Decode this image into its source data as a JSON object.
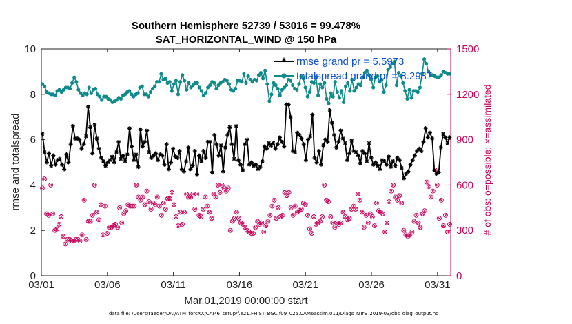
{
  "chart_data": {
    "type": "line",
    "title": "Southern Hemisphere 52739 / 53016 = 99.478%",
    "subtitle": "SAT_HORIZONTAL_WIND @ 150 hPa",
    "xlabel": "Mar.01,2019 00:00:00 start",
    "ylabel": "rmse and totalspread",
    "ylabel_right": "# of obs: o=possible; ×=assimilated",
    "footnote": "data file: /Users/raeder/DAI/ATM_forcXX/CAM6_setup/f.e21.FHIST_BGC.f09_025.CAM6assim.011/Diags_NTrS_2019-03/obs_diag_output.nc",
    "x_ticks": [
      "03/01",
      "03/06",
      "03/11",
      "03/16",
      "03/21",
      "03/26",
      "03/31"
    ],
    "y_ticks": [
      "0",
      "2",
      "4",
      "6",
      "8",
      "10"
    ],
    "y_right_ticks": [
      "0",
      "300",
      "600",
      "900",
      "1200",
      "1500"
    ],
    "xlim": [
      1,
      32
    ],
    "ylim": [
      0,
      10
    ],
    "ylim_right": [
      0,
      1500
    ],
    "grid": false,
    "legend_position": "top-right",
    "series": [
      {
        "name": "rmse grand pr = 5.5973",
        "color": "#000000",
        "marker": "asterisk",
        "values": [
          6.25,
          5.45,
          5.0,
          5.4,
          4.85,
          5.3,
          4.9,
          5.1,
          5.15,
          4.9,
          4.7,
          5.35,
          5.0,
          5.8,
          6.6,
          6.05,
          6.05,
          6.0,
          5.6,
          5.8,
          6.15,
          7.45,
          6.55,
          5.4,
          6.65,
          6.05,
          5.6,
          5.2,
          5.05,
          4.85,
          5.0,
          5.1,
          5.25,
          5.0,
          5.45,
          5.9,
          5.15,
          5.3,
          5.05,
          5.35,
          6.5,
          5.7,
          5.1,
          5.35,
          4.8,
          6.45,
          5.7,
          5.9,
          6.4,
          5.45,
          5.2,
          5.3,
          5.4,
          5.1,
          5.35,
          5.3,
          4.9,
          5.8,
          4.7,
          5.0,
          5.6,
          5.25,
          5.2,
          5.5,
          4.7,
          4.6,
          5.05,
          5.65,
          4.7,
          4.85,
          5.5,
          4.45,
          5.3,
          5.05,
          5.5,
          5.2,
          5.9,
          5.9,
          4.55,
          6.2,
          5.8,
          5.3,
          5.75,
          4.6,
          5.65,
          6.2,
          6.55,
          5.8,
          5.15,
          6.6,
          5.1,
          4.9,
          4.65,
          5.8,
          6.0,
          4.9,
          5.0,
          4.85,
          4.9,
          4.7,
          4.8,
          5.05,
          5.7,
          5.6,
          5.85,
          5.75,
          5.85,
          5.6,
          5.8,
          6.1,
          5.9,
          5.7,
          7.55,
          7.55,
          7.0,
          5.5,
          5.45,
          6.3,
          6.2,
          6.05,
          5.8,
          5.1,
          6.0,
          6.15,
          7.1,
          5.2,
          5.0,
          5.5,
          4.9,
          5.75,
          6.0,
          5.9,
          7.3,
          6.75,
          6.2,
          5.65,
          5.9,
          6.4,
          6.05,
          5.85,
          5.1,
          5.4,
          5.95,
          5.5,
          5.45,
          5.3,
          4.95,
          5.5,
          5.4,
          5.05,
          5.85,
          5.2,
          4.9,
          5.0,
          4.85,
          4.7,
          5.1,
          5.05,
          4.9,
          5.25,
          4.8,
          5.05,
          4.85,
          5.2,
          5.1,
          4.75,
          4.3,
          4.5,
          4.6,
          4.9,
          5.1,
          5.3,
          5.5,
          5.6,
          5.5,
          5.9,
          6.5,
          6.1,
          6.3,
          6.05,
          4.65,
          4.5,
          4.55,
          5.65,
          6.25,
          6.1,
          5.85,
          6.1
        ]
      },
      {
        "name": "totalspread grand pr = 8.2987",
        "color": "#0f8a8a",
        "marker": "circle",
        "values": [
          8.45,
          8.35,
          8.1,
          8.05,
          8.0,
          8.0,
          7.95,
          8.15,
          8.2,
          8.1,
          8.2,
          8.3,
          8.3,
          8.25,
          8.5,
          8.75,
          8.55,
          8.2,
          8.05,
          7.95,
          8.05,
          8.0,
          8.3,
          8.05,
          8.2,
          8.25,
          8.0,
          7.9,
          7.75,
          7.9,
          7.9,
          7.8,
          7.75,
          7.65,
          7.7,
          7.75,
          7.85,
          7.8,
          7.95,
          8.0,
          8.1,
          8.15,
          8.0,
          7.9,
          8.0,
          8.05,
          8.3,
          8.35,
          8.0,
          8.0,
          7.9,
          8.1,
          8.25,
          8.35,
          8.55,
          8.55,
          8.9,
          8.65,
          8.7,
          8.5,
          8.55,
          8.15,
          8.45,
          8.6,
          8.0,
          8.55,
          8.85,
          8.6,
          8.2,
          8.5,
          8.3,
          8.4,
          8.5,
          8.5,
          8.3,
          8.15,
          7.95,
          8.05,
          8.3,
          8.4,
          8.55,
          8.5,
          8.25,
          8.4,
          8.5,
          8.55,
          8.65,
          8.6,
          8.45,
          8.2,
          8.15,
          8.25,
          8.6,
          8.6,
          8.55,
          8.9,
          8.5,
          8.8,
          8.65,
          8.55,
          8.65,
          8.6,
          8.85,
          8.95,
          8.7,
          9.05,
          8.45,
          7.7,
          8.0,
          8.5,
          8.4,
          8.25,
          7.95,
          8.2,
          8.3,
          8.4,
          8.65,
          8.6,
          8.4,
          8.25,
          8.2,
          8.45,
          8.8,
          8.7,
          8.3,
          7.9,
          8.1,
          8.55,
          8.5,
          8.75,
          7.95,
          8.45,
          8.3,
          8.5,
          7.8,
          7.6,
          8.05,
          7.9,
          8.55,
          8.1,
          7.85,
          8.15,
          7.65,
          8.35,
          8.5,
          8.15,
          8.65,
          8.15,
          8.3,
          8.45,
          8.4,
          8.75,
          8.95,
          9.05,
          8.85,
          8.65,
          8.3,
          8.75,
          8.8,
          8.55,
          8.65,
          8.1,
          8.4,
          9.1,
          9.2,
          9.35,
          9.45,
          8.4,
          8.95,
          8.8,
          8.5,
          8.15,
          7.8,
          8.2,
          7.85,
          8.15,
          8.15,
          8.1,
          8.3,
          8.9,
          9.55,
          9.35,
          9.0,
          8.85,
          8.85,
          8.8,
          8.75,
          8.75,
          8.85,
          9.0,
          8.95,
          8.9,
          8.9
        ]
      }
    ],
    "obs_right": {
      "name": "# of obs",
      "color": "#c8005a",
      "values": [
        580,
        640,
        410,
        400,
        600,
        410,
        300,
        310,
        340,
        390,
        260,
        210,
        240,
        240,
        230,
        230,
        240,
        240,
        230,
        270,
        500,
        240,
        360,
        360,
        400,
        600,
        420,
        370,
        470,
        270,
        460,
        280,
        320,
        320,
        330,
        340,
        320,
        450,
        350,
        410,
        430,
        470,
        460,
        460,
        460,
        600,
        520,
        500,
        520,
        470,
        560,
        490,
        440,
        480,
        470,
        520,
        460,
        400,
        480,
        440,
        510,
        510,
        550,
        470,
        390,
        330,
        420,
        340,
        420,
        540,
        520,
        520,
        540,
        440,
        540,
        400,
        390,
        440,
        520,
        460,
        420,
        380,
        540,
        520,
        600,
        550,
        600,
        580,
        560,
        580,
        300,
        360,
        380,
        420,
        380,
        350,
        340,
        320,
        300,
        290,
        280,
        280,
        320,
        360,
        340,
        350,
        290,
        330,
        360,
        400,
        460,
        500,
        380,
        450,
        390,
        400,
        550,
        530,
        550,
        450,
        400,
        460,
        420,
        430,
        440,
        480,
        470,
        400,
        310,
        280,
        390,
        340,
        350,
        360,
        390,
        600,
        500,
        490,
        390,
        350,
        320,
        350,
        340,
        350,
        420,
        390,
        370,
        380,
        440,
        460,
        440,
        540,
        500,
        420,
        320,
        400,
        350,
        410,
        390,
        330,
        480,
        430,
        420,
        410,
        290,
        350,
        490,
        560,
        600,
        520,
        500,
        530,
        480,
        300,
        270,
        260,
        270,
        290,
        360,
        400,
        350,
        320,
        410,
        430,
        620,
        590,
        520,
        560,
        700,
        600,
        380,
        500,
        330,
        400,
        290,
        340
      ]
    }
  }
}
